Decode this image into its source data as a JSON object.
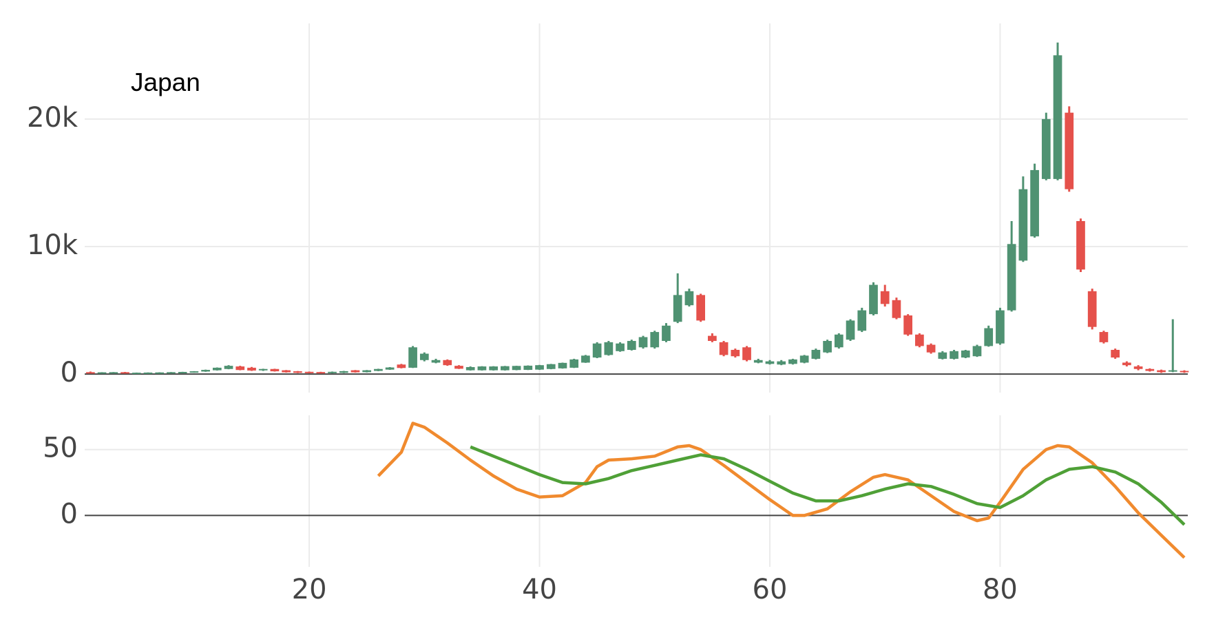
{
  "chart_data": [
    {
      "type": "candlestick",
      "annotation": "Japan",
      "x": [
        1,
        2,
        3,
        4,
        5,
        6,
        7,
        8,
        9,
        10,
        11,
        12,
        13,
        14,
        15,
        16,
        17,
        18,
        19,
        20,
        21,
        22,
        23,
        24,
        25,
        26,
        27,
        28,
        29,
        30,
        31,
        32,
        33,
        34,
        35,
        36,
        37,
        38,
        39,
        40,
        41,
        42,
        43,
        44,
        45,
        46,
        47,
        48,
        49,
        50,
        51,
        52,
        53,
        54,
        55,
        56,
        57,
        58,
        59,
        60,
        61,
        62,
        63,
        64,
        65,
        66,
        67,
        68,
        69,
        70,
        71,
        72,
        73,
        74,
        75,
        76,
        77,
        78,
        79,
        80,
        81,
        82,
        83,
        84,
        85,
        86,
        87,
        88,
        89,
        90,
        91,
        92,
        93,
        94,
        95,
        96
      ],
      "open": [
        150,
        80,
        100,
        150,
        70,
        80,
        90,
        100,
        110,
        130,
        200,
        300,
        400,
        600,
        500,
        300,
        400,
        300,
        220,
        180,
        160,
        80,
        100,
        300,
        150,
        250,
        350,
        750,
        500,
        1100,
        900,
        1100,
        650,
        300,
        300,
        300,
        300,
        320,
        330,
        350,
        400,
        450,
        500,
        900,
        1300,
        1500,
        1800,
        1900,
        2100,
        2100,
        2600,
        4100,
        5400,
        6200,
        3000,
        2500,
        1900,
        2100,
        900,
        800,
        750,
        800,
        900,
        1200,
        1700,
        2100,
        2700,
        3400,
        4700,
        6500,
        5800,
        4600,
        3100,
        2300,
        1200,
        1200,
        1300,
        1400,
        2200,
        2400,
        5000,
        8900,
        10800,
        15300,
        15300,
        20500,
        12000,
        6500,
        3300,
        1900,
        900,
        600,
        400,
        300,
        200,
        250
      ],
      "high": [
        200,
        150,
        160,
        170,
        120,
        130,
        140,
        160,
        180,
        230,
        350,
        520,
        700,
        650,
        560,
        420,
        420,
        320,
        240,
        200,
        180,
        200,
        250,
        320,
        320,
        420,
        550,
        800,
        2200,
        1700,
        1200,
        1150,
        700,
        600,
        620,
        620,
        640,
        650,
        680,
        720,
        800,
        900,
        1200,
        1500,
        2500,
        2600,
        2500,
        2700,
        3000,
        3400,
        4000,
        7900,
        6700,
        6300,
        3200,
        2600,
        2000,
        2200,
        1200,
        1100,
        1100,
        1200,
        1500,
        2000,
        2700,
        3200,
        4300,
        5200,
        7200,
        7000,
        6000,
        4700,
        3200,
        2400,
        1800,
        1900,
        1900,
        2300,
        3800,
        5200,
        12000,
        15500,
        16500,
        20500,
        26000,
        21000,
        12200,
        6700,
        3400,
        2000,
        1000,
        700,
        450,
        350,
        4300,
        300
      ],
      "low": [
        80,
        60,
        80,
        60,
        50,
        60,
        70,
        80,
        90,
        110,
        180,
        280,
        380,
        300,
        250,
        250,
        200,
        120,
        80,
        60,
        50,
        60,
        80,
        120,
        130,
        230,
        330,
        450,
        480,
        1000,
        850,
        650,
        400,
        280,
        280,
        280,
        280,
        300,
        320,
        330,
        380,
        430,
        480,
        880,
        1250,
        1450,
        1750,
        1850,
        2000,
        2000,
        2500,
        4000,
        5300,
        4100,
        2500,
        1400,
        1300,
        1000,
        850,
        750,
        700,
        750,
        850,
        1150,
        1650,
        2000,
        2600,
        3300,
        4600,
        5300,
        4300,
        3000,
        2100,
        1600,
        1150,
        1150,
        1250,
        1350,
        2150,
        2300,
        4900,
        8800,
        10700,
        15200,
        15200,
        14300,
        8000,
        3500,
        2400,
        1200,
        600,
        300,
        200,
        100,
        150,
        100
      ],
      "close": [
        80,
        140,
        150,
        70,
        110,
        120,
        130,
        150,
        170,
        220,
        330,
        500,
        650,
        320,
        280,
        400,
        220,
        140,
        100,
        80,
        70,
        180,
        230,
        140,
        300,
        400,
        520,
        480,
        2100,
        1600,
        1100,
        700,
        420,
        550,
        600,
        600,
        620,
        640,
        660,
        700,
        780,
        880,
        1150,
        1450,
        2400,
        2500,
        2400,
        2600,
        2900,
        3300,
        3800,
        6200,
        6500,
        4200,
        2600,
        1500,
        1400,
        1100,
        1100,
        1000,
        1000,
        1150,
        1450,
        1900,
        2600,
        3100,
        4200,
        5000,
        7000,
        5500,
        4400,
        3100,
        2200,
        1700,
        1700,
        1800,
        1850,
        2200,
        3600,
        5000,
        10200,
        14500,
        16000,
        20000,
        25000,
        14500,
        8200,
        3700,
        2500,
        1300,
        700,
        400,
        250,
        150,
        300,
        200
      ],
      "increasing_color": "#4f9272",
      "decreasing_color": "#e5514b",
      "xlim": [
        0.5,
        96.3
      ],
      "ylim": [
        -1450,
        27500
      ],
      "yticks": [
        0,
        {
          "value": 10000,
          "label": "10k"
        },
        {
          "value": 20000,
          "label": "20k"
        }
      ],
      "grid": true
    },
    {
      "type": "line",
      "series": [
        {
          "color": "#f08a2e",
          "x": [
            26,
            28,
            29,
            30,
            32,
            34,
            36,
            38,
            40,
            42,
            44,
            45,
            46,
            48,
            50,
            52,
            53,
            54,
            56,
            58,
            60,
            62,
            63,
            65,
            67,
            69,
            70,
            72,
            74,
            76,
            78,
            79,
            80,
            82,
            84,
            85,
            86,
            88,
            90,
            92,
            94,
            96
          ],
          "values": [
            30,
            48,
            70,
            67,
            55,
            42,
            30,
            20,
            14,
            15,
            25,
            37,
            42,
            43,
            45,
            52,
            53,
            50,
            38,
            25,
            12,
            0,
            0,
            5,
            18,
            29,
            31,
            27,
            15,
            3,
            -4,
            -2,
            10,
            35,
            50,
            53,
            52,
            40,
            22,
            2,
            -15,
            -32
          ]
        },
        {
          "color": "#4fa037",
          "x": [
            34,
            36,
            38,
            40,
            42,
            44,
            46,
            48,
            50,
            52,
            54,
            56,
            58,
            60,
            62,
            64,
            66,
            68,
            70,
            72,
            74,
            76,
            78,
            80,
            82,
            84,
            86,
            88,
            90,
            92,
            94,
            96
          ],
          "values": [
            52,
            45,
            38,
            31,
            25,
            24,
            28,
            34,
            38,
            42,
            46,
            43,
            35,
            26,
            17,
            11,
            11,
            15,
            20,
            24,
            22,
            16,
            9,
            6,
            15,
            27,
            35,
            37,
            33,
            24,
            10,
            -7
          ]
        }
      ],
      "xlim": [
        0.5,
        96.3
      ],
      "ylim": [
        -39,
        76
      ],
      "xticks": [
        20,
        40,
        60,
        80
      ],
      "yticks": [
        0,
        50
      ],
      "grid": true
    }
  ]
}
